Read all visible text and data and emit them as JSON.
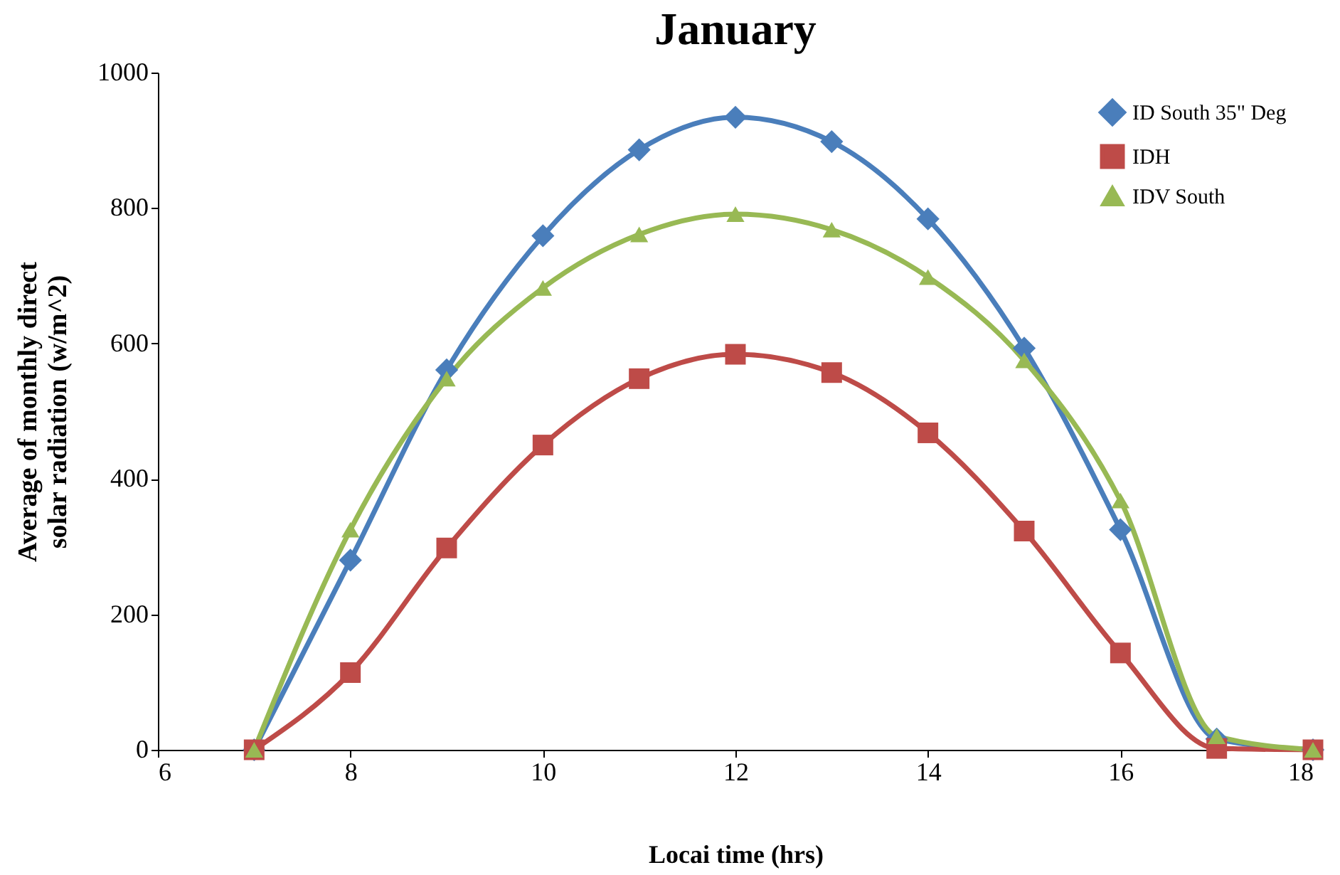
{
  "chart_data": {
    "type": "line",
    "title": "January",
    "xlabel": "Locai  time (hrs)",
    "ylabel": "Average of monthly direct\nsolar radiation (w/m^2)",
    "x": [
      7,
      8,
      9,
      10,
      11,
      12,
      13,
      14,
      15,
      16,
      17,
      18
    ],
    "series": [
      {
        "name": "ID South 35\" Deg",
        "color": "#4a7ebb",
        "marker": "diamond",
        "values": [
          0,
          280,
          561,
          759,
          886,
          934,
          898,
          784,
          593,
          325,
          16,
          0
        ]
      },
      {
        "name": "IDH",
        "color": "#be4b48",
        "marker": "square",
        "values": [
          0,
          114,
          298,
          450,
          548,
          584,
          557,
          468,
          323,
          143,
          2,
          0
        ]
      },
      {
        "name": "IDV South",
        "color": "#98b954",
        "marker": "triangle",
        "values": [
          0,
          325,
          548,
          682,
          761,
          791,
          768,
          698,
          575,
          368,
          20,
          0
        ]
      }
    ],
    "xlim": [
      6,
      18
    ],
    "xticks": [
      6,
      8,
      10,
      12,
      14,
      16,
      18
    ],
    "ylim": [
      0,
      1000
    ],
    "yticks": [
      0,
      200,
      400,
      600,
      800,
      1000
    ],
    "grid": false,
    "legend": "top right",
    "line_style": "solid"
  }
}
